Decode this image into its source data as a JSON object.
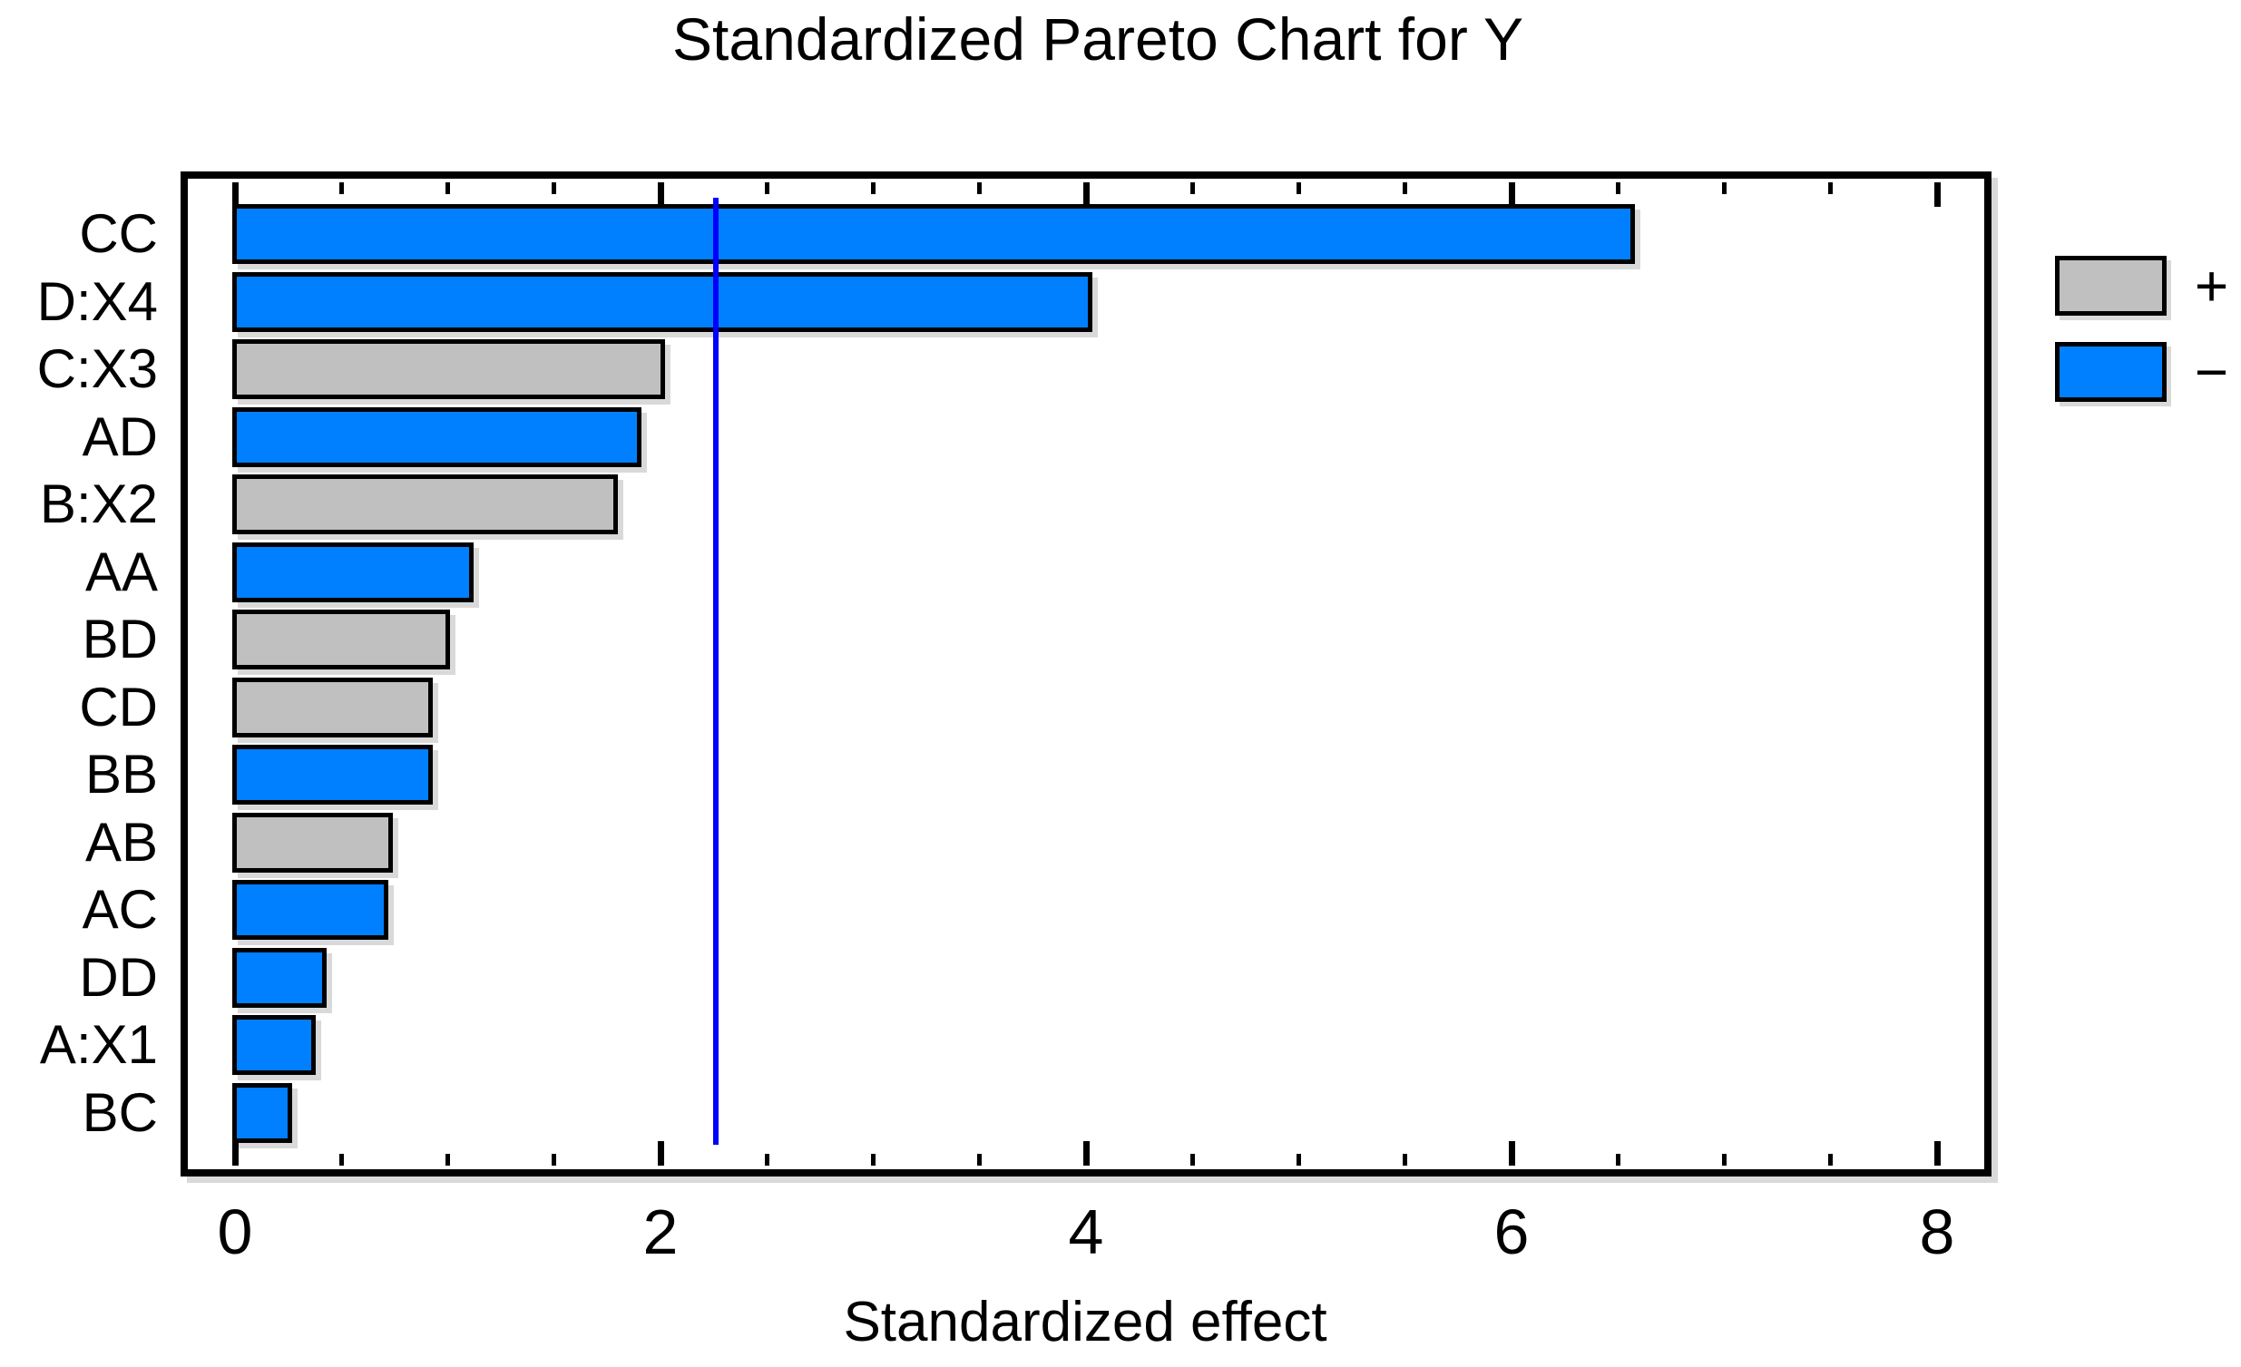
{
  "chart_data": {
    "type": "bar",
    "orientation": "horizontal",
    "title": "Standardized Pareto Chart for Y",
    "xlabel": "Standardized effect",
    "xlim": [
      0,
      8.2
    ],
    "x_major_ticks": [
      0,
      2,
      4,
      6,
      8
    ],
    "x_minor_tick_step": 0.5,
    "grid": false,
    "reference_line": {
      "value": 2.26,
      "color": "#0000FF"
    },
    "bars": [
      {
        "label": "CC",
        "value": 6.58,
        "sign": "-"
      },
      {
        "label": "D:X4",
        "value": 4.03,
        "sign": "-"
      },
      {
        "label": "C:X3",
        "value": 2.02,
        "sign": "+"
      },
      {
        "label": "AD",
        "value": 1.91,
        "sign": "-"
      },
      {
        "label": "B:X2",
        "value": 1.8,
        "sign": "+"
      },
      {
        "label": "AA",
        "value": 1.12,
        "sign": "-"
      },
      {
        "label": "BD",
        "value": 1.01,
        "sign": "+"
      },
      {
        "label": "CD",
        "value": 0.93,
        "sign": "+"
      },
      {
        "label": "BB",
        "value": 0.93,
        "sign": "-"
      },
      {
        "label": "AB",
        "value": 0.74,
        "sign": "+"
      },
      {
        "label": "AC",
        "value": 0.72,
        "sign": "-"
      },
      {
        "label": "DD",
        "value": 0.43,
        "sign": "-"
      },
      {
        "label": "A:X1",
        "value": 0.38,
        "sign": "-"
      },
      {
        "label": "BC",
        "value": 0.27,
        "sign": "-"
      }
    ],
    "colors": {
      "positive": "#C0C0C0",
      "negative": "#0080FF",
      "bar_border": "#000000",
      "frame": "#000000",
      "background": "#FFFFFF"
    },
    "legend": {
      "position": "right",
      "entries": [
        {
          "label": "+",
          "key": "positive",
          "color": "#C0C0C0"
        },
        {
          "label": "−",
          "key": "negative",
          "color": "#0080FF"
        }
      ]
    }
  }
}
